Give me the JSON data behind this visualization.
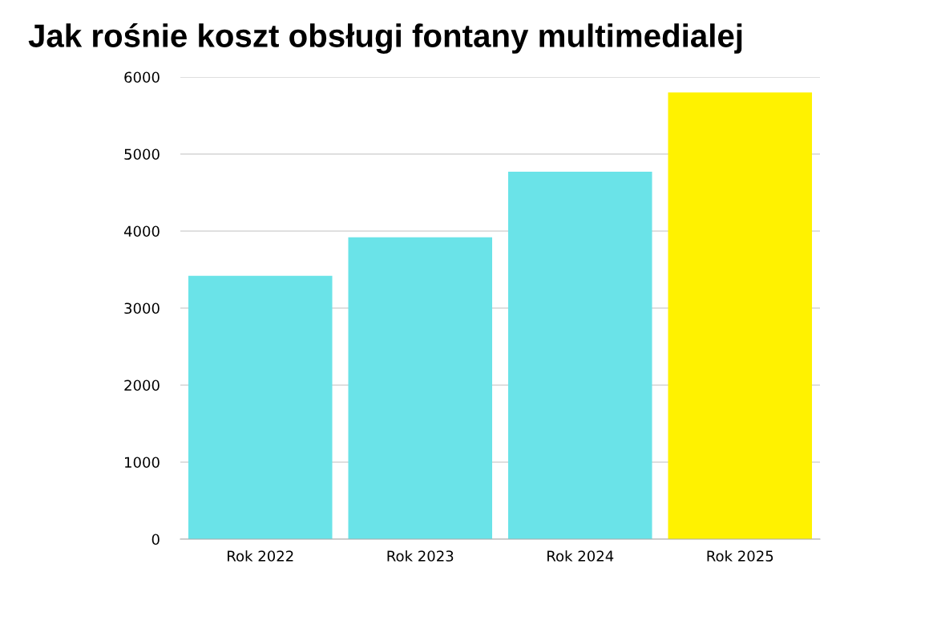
{
  "chart_data": {
    "type": "bar",
    "title": "Jak rośnie koszt obsługi fontany multimedialej",
    "categories": [
      "Rok 2022",
      "Rok 2023",
      "Rok 2024",
      "Rok 2025"
    ],
    "values": [
      3420,
      3920,
      4770,
      5800
    ],
    "colors": [
      "#6ae3e8",
      "#6ae3e8",
      "#6ae3e8",
      "#fff200"
    ],
    "ylim": [
      0,
      6000
    ],
    "yticks": [
      0,
      1000,
      2000,
      3000,
      4000,
      5000,
      6000
    ],
    "grid": "y"
  }
}
